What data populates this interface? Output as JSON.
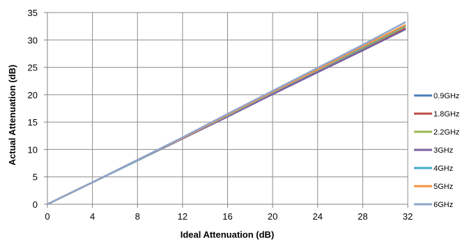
{
  "chart_data": {
    "type": "line",
    "title": "",
    "xlabel": "Ideal Attenuation (dB)",
    "ylabel": "Actual Attenuation (dB)",
    "xlim": [
      0,
      32
    ],
    "ylim": [
      0,
      35
    ],
    "xticks": [
      0,
      4,
      8,
      12,
      16,
      20,
      24,
      28,
      32
    ],
    "yticks": [
      0,
      5,
      10,
      15,
      20,
      25,
      30,
      35
    ],
    "grid": true,
    "legend_position": "right",
    "x": [
      0,
      4,
      8,
      12,
      16,
      20,
      24,
      28,
      31.75
    ],
    "series": [
      {
        "name": "0.9GHz",
        "color": "#4A7EBB",
        "values": [
          0,
          4.0,
          8.0,
          12.0,
          16.0,
          20.1,
          24.1,
          28.1,
          31.9
        ]
      },
      {
        "name": "1.8GHz",
        "color": "#BE4B48",
        "values": [
          0,
          4.0,
          8.0,
          12.0,
          16.0,
          20.2,
          24.2,
          28.2,
          32.1
        ]
      },
      {
        "name": "2.2GHz",
        "color": "#98B954",
        "values": [
          0,
          4.0,
          8.0,
          12.0,
          16.1,
          20.3,
          24.4,
          28.5,
          32.4
        ]
      },
      {
        "name": "3GHz",
        "color": "#7D60A0",
        "values": [
          0,
          4.0,
          8.0,
          12.0,
          16.0,
          20.1,
          24.1,
          28.1,
          31.9
        ]
      },
      {
        "name": "4GHz",
        "color": "#46AAC5",
        "values": [
          0,
          4.0,
          8.0,
          12.1,
          16.2,
          20.4,
          24.5,
          28.6,
          32.6
        ]
      },
      {
        "name": "5GHz",
        "color": "#F69240",
        "values": [
          0,
          4.0,
          8.1,
          12.1,
          16.3,
          20.5,
          24.6,
          28.8,
          32.7
        ]
      },
      {
        "name": "6GHz",
        "color": "#8EA5CB",
        "values": [
          0,
          4.0,
          8.1,
          12.2,
          16.5,
          20.7,
          24.9,
          29.1,
          33.2
        ]
      }
    ]
  }
}
